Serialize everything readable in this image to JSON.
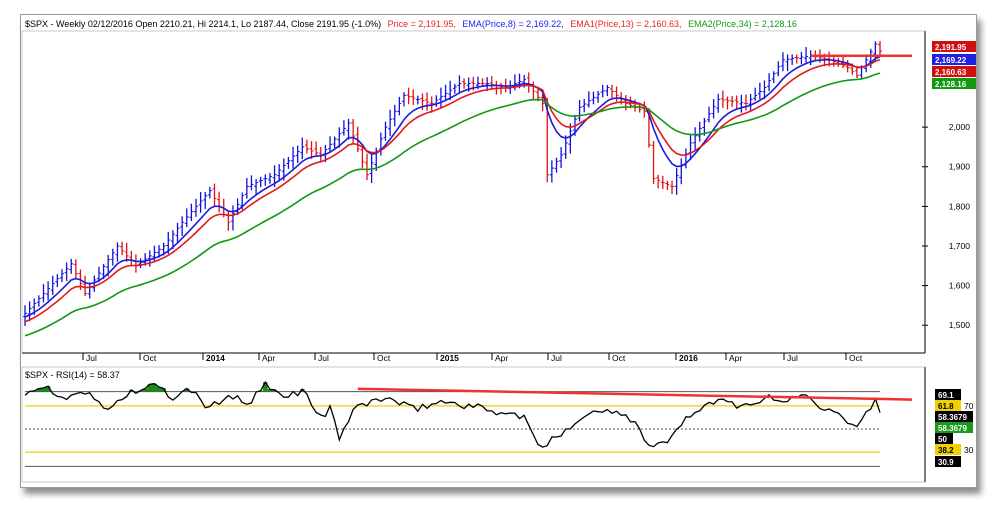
{
  "header": {
    "symbol_info": "$SPX - Weekly 02/12/2016 Open 2210.21, Hi 2214.1, Lo 2187.44, Close 2191.95 (-1.0%)",
    "price_label": "Price = 2,191.95,",
    "ema8_label": "EMA(Price,8) = 2,169.22,",
    "ema13_label": "EMA1(Price,13) = 2,160.63,",
    "ema34_label": "EMA2(Price,34) = 2,128.16",
    "rsi_label": "$SPX - RSI(14) = 58.37"
  },
  "colors": {
    "price_up": "#1010e0",
    "price_down": "#e01010",
    "ema8": "#1a1ae0",
    "ema13": "#e01a1a",
    "ema34": "#119911",
    "rsi": "#000000",
    "rsi_fill": "#1a8a1a",
    "trendline": "#ee3333",
    "band_yellow": "#f0d000",
    "axis": "#000000"
  },
  "badges": {
    "price": "2,191.95",
    "ema8": "2,169.22",
    "ema13": "2,160.63",
    "ema34": "2,128.16",
    "rsi_69": "69.1",
    "rsi_618": "61.8",
    "rsi_val": "58.3679",
    "rsi_val2": "58.3679",
    "rsi_50": "50",
    "rsi_382": "38.2",
    "rsi_309": "30.9",
    "rsi_70": "70",
    "rsi_30": "30"
  },
  "chart_data": [
    {
      "type": "line",
      "title": "$SPX - Weekly",
      "ylim": [
        1440,
        2230
      ],
      "yticks": [
        "1,500",
        "1,600",
        "1,700",
        "1,800",
        "1,900",
        "2,000"
      ],
      "x_labels": [
        {
          "label": "Jul",
          "bold": false
        },
        {
          "label": "Oct",
          "bold": false
        },
        {
          "label": "2014",
          "bold": true
        },
        {
          "label": "Apr",
          "bold": false
        },
        {
          "label": "Jul",
          "bold": false
        },
        {
          "label": "Oct",
          "bold": false
        },
        {
          "label": "2015",
          "bold": true
        },
        {
          "label": "Apr",
          "bold": false
        },
        {
          "label": "Jul",
          "bold": false
        },
        {
          "label": "Oct",
          "bold": false
        },
        {
          "label": "2016",
          "bold": true
        },
        {
          "label": "Apr",
          "bold": false
        },
        {
          "label": "Jul",
          "bold": false
        },
        {
          "label": "Oct",
          "bold": false
        }
      ],
      "price_anchors": [
        [
          0,
          1530
        ],
        [
          10,
          1655
        ],
        [
          13,
          1580
        ],
        [
          20,
          1700
        ],
        [
          24,
          1650
        ],
        [
          30,
          1700
        ],
        [
          34,
          1760
        ],
        [
          40,
          1840
        ],
        [
          44,
          1760
        ],
        [
          48,
          1850
        ],
        [
          54,
          1880
        ],
        [
          60,
          1950
        ],
        [
          64,
          1930
        ],
        [
          70,
          2010
        ],
        [
          74,
          1880
        ],
        [
          78,
          2000
        ],
        [
          82,
          2080
        ],
        [
          88,
          2060
        ],
        [
          94,
          2110
        ],
        [
          100,
          2110
        ],
        [
          104,
          2100
        ],
        [
          108,
          2120
        ],
        [
          112,
          2060
        ],
        [
          113,
          1880
        ],
        [
          116,
          1930
        ],
        [
          120,
          2050
        ],
        [
          126,
          2100
        ],
        [
          130,
          2060
        ],
        [
          134,
          2040
        ],
        [
          136,
          1870
        ],
        [
          140,
          1850
        ],
        [
          144,
          1960
        ],
        [
          150,
          2070
        ],
        [
          156,
          2060
        ],
        [
          160,
          2100
        ],
        [
          164,
          2170
        ],
        [
          170,
          2180
        ],
        [
          174,
          2170
        ],
        [
          178,
          2150
        ],
        [
          180,
          2130
        ],
        [
          182,
          2170
        ],
        [
          184,
          2210
        ],
        [
          185,
          2192
        ]
      ],
      "series": [
        {
          "name": "Price",
          "values_ref": "price_anchors"
        },
        {
          "name": "EMA(Price,8)",
          "period": 8
        },
        {
          "name": "EMA1(Price,13)",
          "period": 13
        },
        {
          "name": "EMA2(Price,34)",
          "period": 34
        }
      ],
      "resistance": 2180
    },
    {
      "type": "line",
      "title": "$SPX - RSI(14)",
      "ylim": [
        25,
        75
      ],
      "levels": [
        69.1,
        61.8,
        50,
        38.2,
        30.9
      ],
      "rsi_anchors": [
        [
          0,
          68
        ],
        [
          4,
          72
        ],
        [
          8,
          66
        ],
        [
          12,
          70
        ],
        [
          18,
          60
        ],
        [
          22,
          68
        ],
        [
          28,
          72
        ],
        [
          32,
          66
        ],
        [
          36,
          70
        ],
        [
          40,
          60
        ],
        [
          44,
          68
        ],
        [
          48,
          62
        ],
        [
          52,
          72
        ],
        [
          56,
          66
        ],
        [
          60,
          70
        ],
        [
          64,
          56
        ],
        [
          66,
          60
        ],
        [
          68,
          46
        ],
        [
          72,
          62
        ],
        [
          78,
          66
        ],
        [
          84,
          60
        ],
        [
          90,
          64
        ],
        [
          96,
          62
        ],
        [
          100,
          60
        ],
        [
          104,
          58
        ],
        [
          108,
          56
        ],
        [
          110,
          46
        ],
        [
          112,
          40
        ],
        [
          114,
          44
        ],
        [
          118,
          52
        ],
        [
          122,
          58
        ],
        [
          128,
          60
        ],
        [
          132,
          54
        ],
        [
          134,
          44
        ],
        [
          136,
          40
        ],
        [
          140,
          46
        ],
        [
          144,
          58
        ],
        [
          150,
          64
        ],
        [
          156,
          62
        ],
        [
          160,
          66
        ],
        [
          164,
          64
        ],
        [
          168,
          68
        ],
        [
          172,
          62
        ],
        [
          176,
          60
        ],
        [
          178,
          54
        ],
        [
          180,
          50
        ],
        [
          182,
          60
        ],
        [
          184,
          64
        ],
        [
          185,
          58.37
        ]
      ],
      "trendline": [
        [
          72,
          70.5
        ],
        [
          190,
          65
        ]
      ]
    }
  ]
}
